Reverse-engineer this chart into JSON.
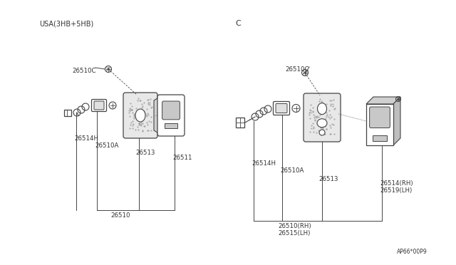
{
  "bg_color": "#ffffff",
  "line_color": "#444444",
  "text_color": "#333333",
  "fig_width": 6.4,
  "fig_height": 3.72,
  "title_left": "USA(3HB+5HB)",
  "title_right": "C",
  "watermark": "AP66*00P9",
  "left_parts": {
    "label_26510C": "26510C",
    "label_26514H": "26514H",
    "label_26510A": "26510A",
    "label_26513": "26513",
    "label_26511": "26511",
    "label_26510": "26510"
  },
  "right_parts": {
    "label_26510C": "26510C",
    "label_26514H": "26514H",
    "label_26510A": "26510A",
    "label_26513": "26513",
    "label_26514RH": "26514(RH)",
    "label_26519LH": "26519(LH)",
    "label_26510RH": "26510(RH)",
    "label_26515LH": "26515(LH)"
  }
}
